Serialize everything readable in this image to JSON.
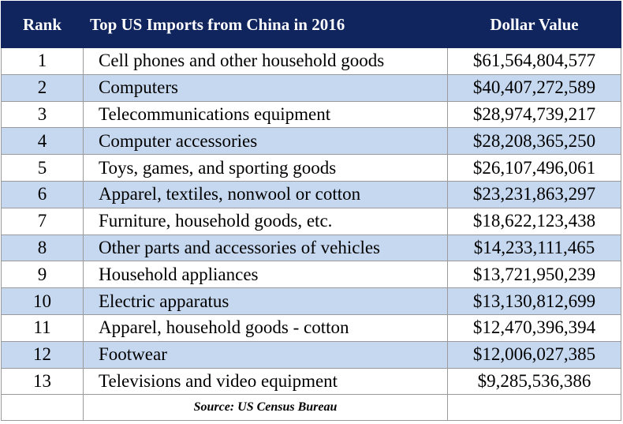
{
  "table": {
    "headers": {
      "rank": "Rank",
      "item": "Top US Imports from China in 2016",
      "value": "Dollar Value"
    },
    "rows": [
      {
        "rank": "1",
        "item": "Cell phones and other household goods",
        "value": "$61,564,804,577"
      },
      {
        "rank": "2",
        "item": "Computers",
        "value": "$40,407,272,589"
      },
      {
        "rank": "3",
        "item": "Telecommunications equipment",
        "value": "$28,974,739,217"
      },
      {
        "rank": "4",
        "item": "Computer accessories",
        "value": "$28,208,365,250"
      },
      {
        "rank": "5",
        "item": "Toys, games, and sporting goods",
        "value": "$26,107,496,061"
      },
      {
        "rank": "6",
        "item": "Apparel, textiles, nonwool or cotton",
        "value": "$23,231,863,297"
      },
      {
        "rank": "7",
        "item": "Furniture, household goods, etc.",
        "value": "$18,622,123,438"
      },
      {
        "rank": "8",
        "item": "Other parts and accessories of vehicles",
        "value": "$14,233,111,465"
      },
      {
        "rank": "9",
        "item": "Household appliances",
        "value": "$13,721,950,239"
      },
      {
        "rank": "10",
        "item": "Electric apparatus",
        "value": "$13,130,812,699"
      },
      {
        "rank": "11",
        "item": "Apparel, household goods - cotton",
        "value": "$12,470,396,394"
      },
      {
        "rank": "12",
        "item": "Footwear",
        "value": "$12,006,027,385"
      },
      {
        "rank": "13",
        "item": "Televisions and video equipment",
        "value": "$9,285,536,386"
      }
    ],
    "source": "Source: US Census Bureau"
  },
  "colors": {
    "header_background": "#10255e",
    "header_text": "#ffffff",
    "stripe_background": "#c6d8ef",
    "row_background": "#ffffff",
    "border": "#9a9a9a"
  }
}
